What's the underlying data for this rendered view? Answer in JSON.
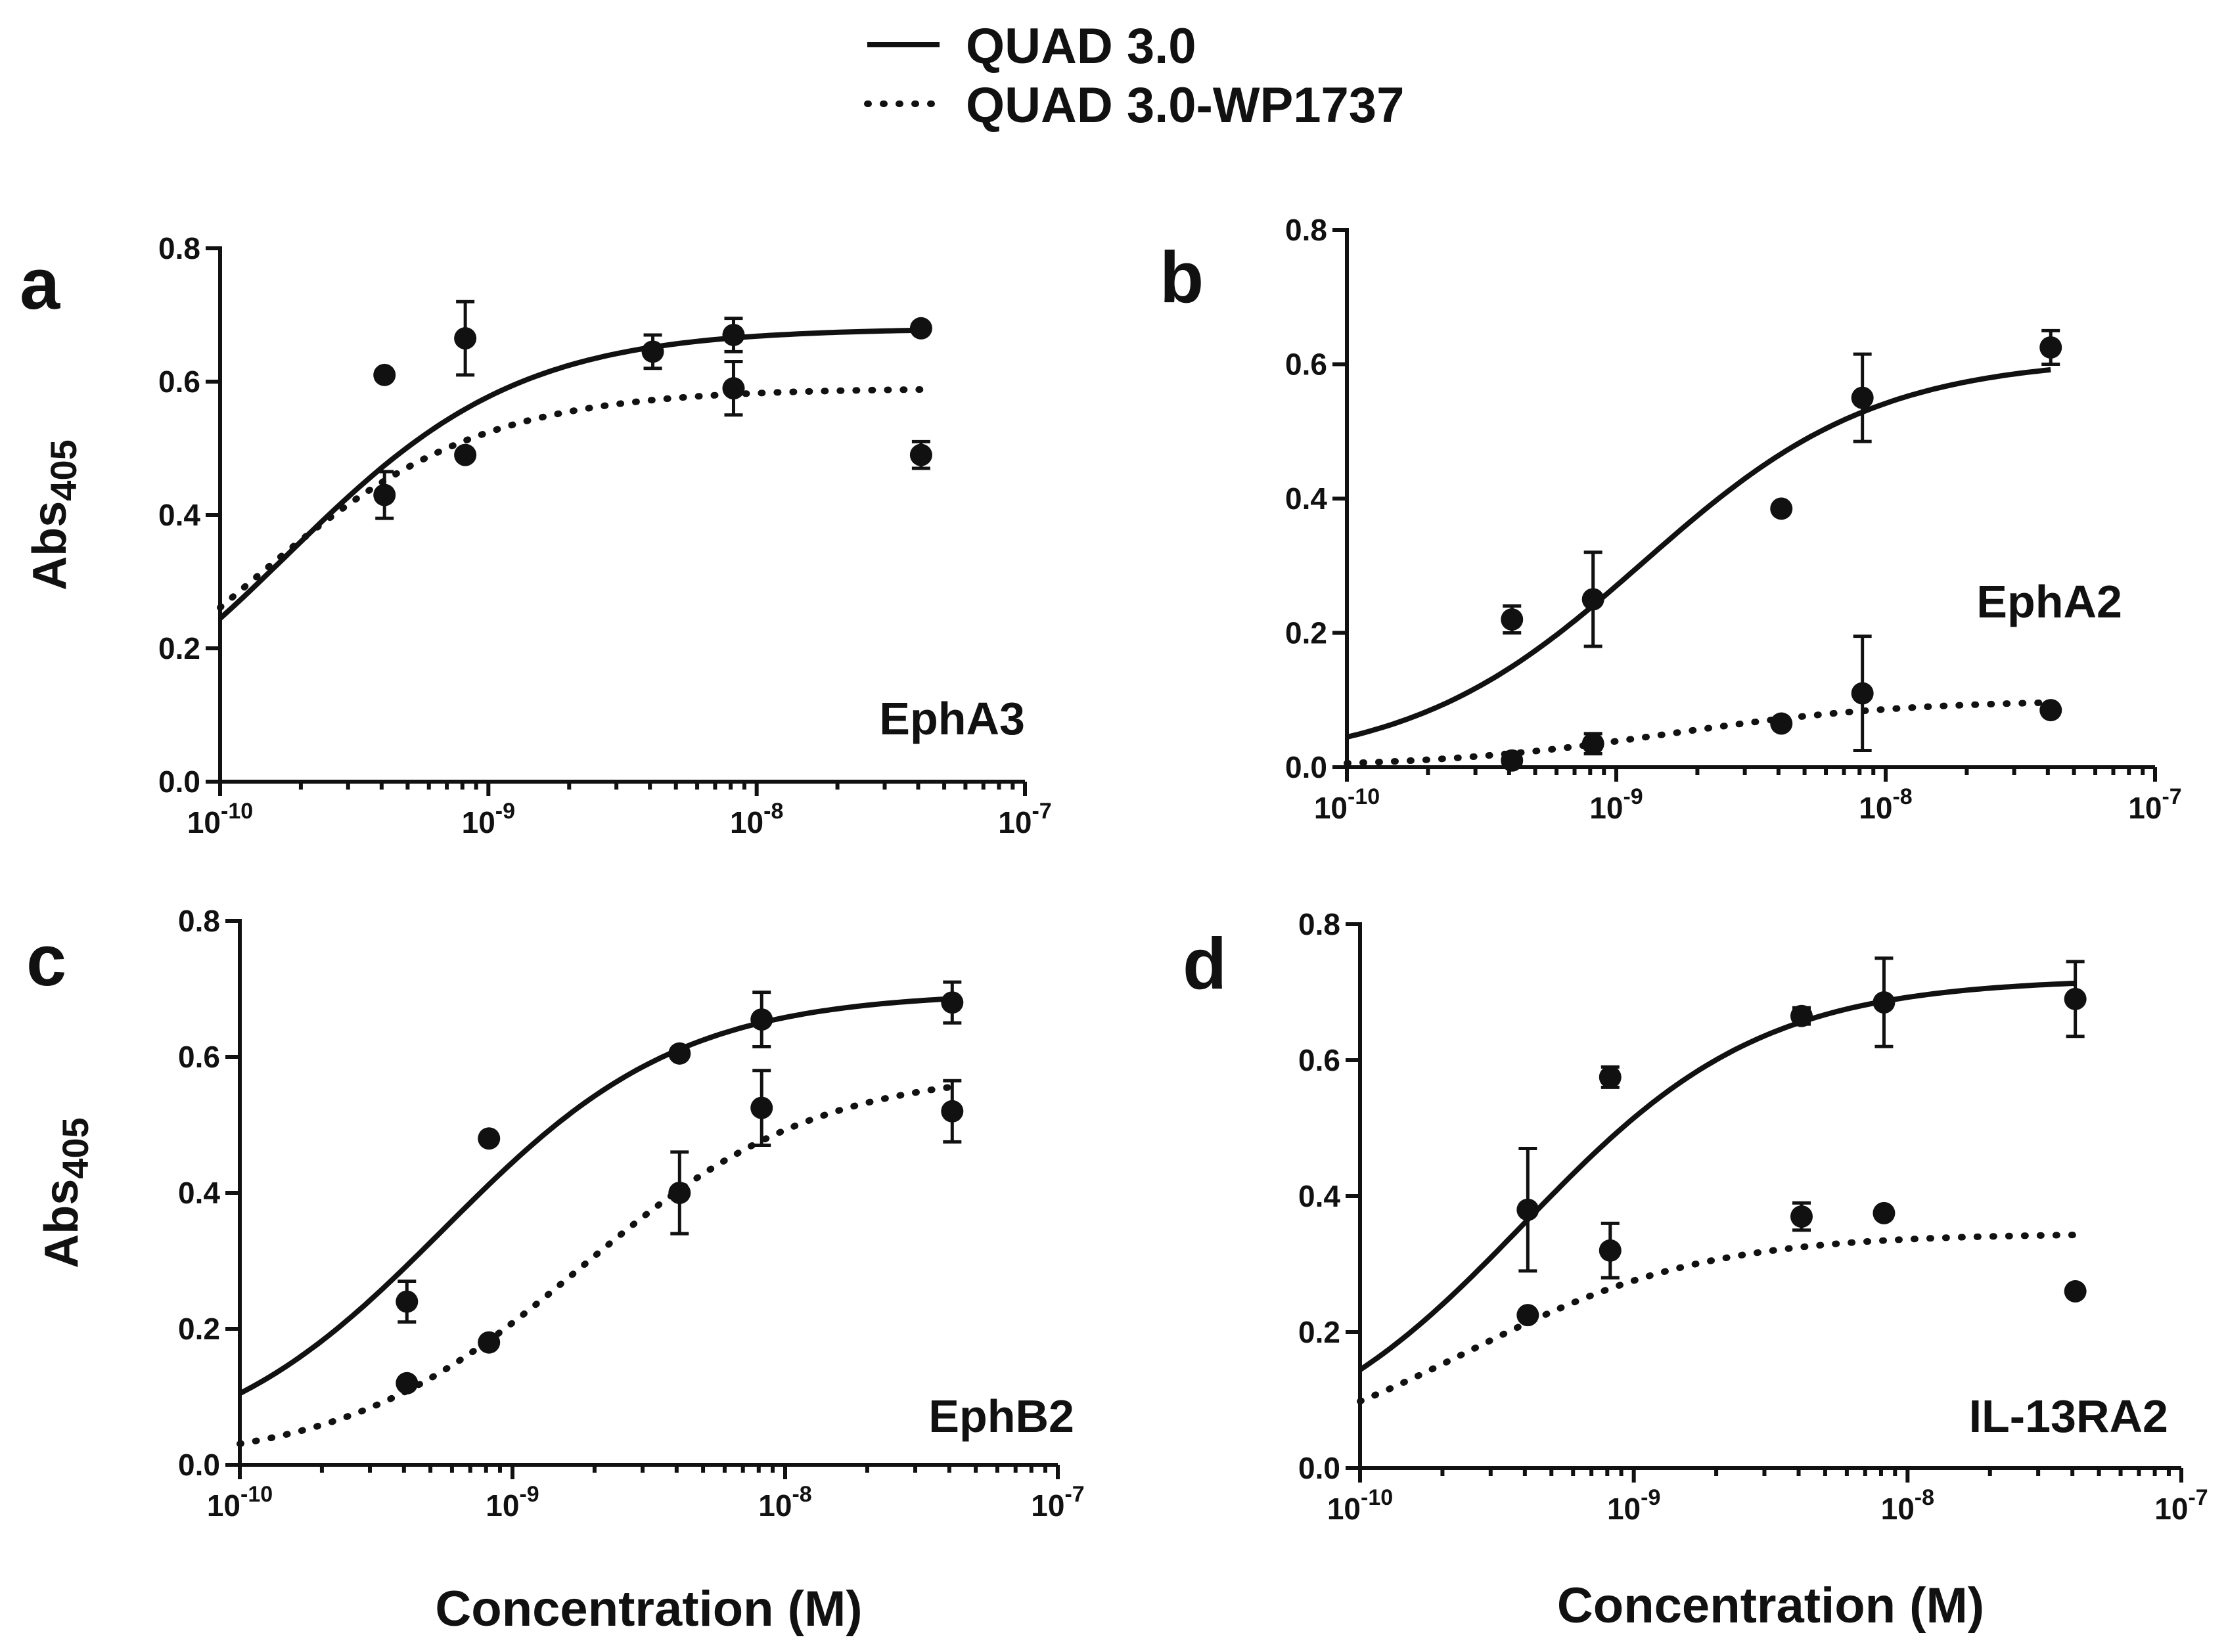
{
  "legend": {
    "entries": [
      {
        "name": "QUAD 3.0",
        "style": "solid"
      },
      {
        "name": "QUAD 3.0-WP1737",
        "style": "dotted"
      }
    ]
  },
  "colors": {
    "ink": "#111111",
    "background": "#ffffff"
  },
  "chart_data": [
    {
      "type": "scatter",
      "panel": "a",
      "label": "EphA3",
      "ylabel_main": "Abs",
      "ylabel_sub": "405",
      "xlabel": "",
      "xscale": "log",
      "xlim": [
        1e-10,
        1e-07
      ],
      "ylim": [
        0,
        0.8
      ],
      "yticks": [
        "0.0",
        "0.2",
        "0.4",
        "0.6",
        "0.8"
      ],
      "xticks": [
        {
          "base": "10",
          "exp": "-10",
          "value": 1e-10
        },
        {
          "base": "10",
          "exp": "-9",
          "value": 1e-09
        },
        {
          "base": "10",
          "exp": "-8",
          "value": 1e-08
        },
        {
          "base": "10",
          "exp": "-7",
          "value": 1e-07
        }
      ],
      "series": [
        {
          "name": "QUAD 3.0",
          "style": "solid",
          "points": [
            {
              "x": 4.1e-10,
              "y": 0.61,
              "err": 0
            },
            {
              "x": 8.2e-10,
              "y": 0.665,
              "err": 0.055
            },
            {
              "x": 4.1e-09,
              "y": 0.645,
              "err": 0.025
            },
            {
              "x": 8.2e-09,
              "y": 0.67,
              "err": 0.025
            },
            {
              "x": 4.1e-08,
              "y": 0.68,
              "err": 0
            }
          ],
          "fit": {
            "bottom": 0,
            "top": 0.68,
            "logEC50": -9.75,
            "hill": 1,
            "xmin": 1e-10,
            "xmax": 4.1e-08
          }
        },
        {
          "name": "QUAD 3.0-WP1737",
          "style": "dotted",
          "points": [
            {
              "x": 4.1e-10,
              "y": 0.43,
              "err": 0.035
            },
            {
              "x": 8.2e-10,
              "y": 0.49,
              "err": 0
            },
            {
              "x": 8.2e-09,
              "y": 0.59,
              "err": 0.04
            },
            {
              "x": 4.1e-08,
              "y": 0.49,
              "err": 0.02
            }
          ],
          "fit": {
            "bottom": 0,
            "top": 0.59,
            "logEC50": -9.9,
            "hill": 1,
            "xmin": 1e-10,
            "xmax": 4.1e-08
          }
        }
      ]
    },
    {
      "type": "scatter",
      "panel": "b",
      "label": "EphA2",
      "ylabel_main": "",
      "ylabel_sub": "",
      "xlabel": "",
      "xscale": "log",
      "xlim": [
        1e-10,
        1e-07
      ],
      "ylim": [
        0,
        0.8
      ],
      "yticks": [
        "0.0",
        "0.2",
        "0.4",
        "0.6",
        "0.8"
      ],
      "xticks": [
        {
          "base": "10",
          "exp": "-10",
          "value": 1e-10
        },
        {
          "base": "10",
          "exp": "-9",
          "value": 1e-09
        },
        {
          "base": "10",
          "exp": "-8",
          "value": 1e-08
        },
        {
          "base": "10",
          "exp": "-7",
          "value": 1e-07
        }
      ],
      "series": [
        {
          "name": "QUAD 3.0",
          "style": "solid",
          "points": [
            {
              "x": 4.1e-10,
              "y": 0.22,
              "err": 0.02
            },
            {
              "x": 8.2e-10,
              "y": 0.25,
              "err": 0.07
            },
            {
              "x": 4.1e-09,
              "y": 0.385,
              "err": 0
            },
            {
              "x": 8.2e-09,
              "y": 0.55,
              "err": 0.065
            },
            {
              "x": 4.1e-08,
              "y": 0.625,
              "err": 0.025
            }
          ],
          "fit": {
            "bottom": 0,
            "top": 0.61,
            "logEC50": -8.9,
            "hill": 1,
            "xmin": 1e-10,
            "xmax": 4.1e-08
          }
        },
        {
          "name": "QUAD 3.0-WP1737",
          "style": "dotted",
          "points": [
            {
              "x": 4.1e-10,
              "y": 0.01,
              "err": 0
            },
            {
              "x": 8.2e-10,
              "y": 0.035,
              "err": 0.015
            },
            {
              "x": 4.1e-09,
              "y": 0.065,
              "err": 0
            },
            {
              "x": 8.2e-09,
              "y": 0.11,
              "err": 0.085
            },
            {
              "x": 4.1e-08,
              "y": 0.085,
              "err": 0
            }
          ],
          "fit": {
            "bottom": 0,
            "top": 0.1,
            "logEC50": -8.8,
            "hill": 1,
            "xmin": 1e-10,
            "xmax": 4.1e-08
          }
        }
      ]
    },
    {
      "type": "scatter",
      "panel": "c",
      "label": "EphB2",
      "ylabel_main": "Abs",
      "ylabel_sub": "405",
      "xlabel": "Concentration (M)",
      "xscale": "log",
      "xlim": [
        1e-10,
        1e-07
      ],
      "ylim": [
        0,
        0.8
      ],
      "yticks": [
        "0.0",
        "0.2",
        "0.4",
        "0.6",
        "0.8"
      ],
      "xticks": [
        {
          "base": "10",
          "exp": "-10",
          "value": 1e-10
        },
        {
          "base": "10",
          "exp": "-9",
          "value": 1e-09
        },
        {
          "base": "10",
          "exp": "-8",
          "value": 1e-08
        },
        {
          "base": "10",
          "exp": "-7",
          "value": 1e-07
        }
      ],
      "series": [
        {
          "name": "QUAD 3.0",
          "style": "solid",
          "points": [
            {
              "x": 4.1e-10,
              "y": 0.24,
              "err": 0.03
            },
            {
              "x": 8.2e-10,
              "y": 0.48,
              "err": 0
            },
            {
              "x": 4.1e-09,
              "y": 0.605,
              "err": 0
            },
            {
              "x": 8.2e-09,
              "y": 0.655,
              "err": 0.04
            },
            {
              "x": 4.1e-08,
              "y": 0.68,
              "err": 0.03
            }
          ],
          "fit": {
            "bottom": 0,
            "top": 0.695,
            "logEC50": -9.25,
            "hill": 1,
            "xmin": 1e-10,
            "xmax": 4.1e-08
          }
        },
        {
          "name": "QUAD 3.0-WP1737",
          "style": "dotted",
          "points": [
            {
              "x": 4.1e-10,
              "y": 0.12,
              "err": 0
            },
            {
              "x": 8.2e-10,
              "y": 0.18,
              "err": 0
            },
            {
              "x": 4.1e-09,
              "y": 0.4,
              "err": 0.06
            },
            {
              "x": 8.2e-09,
              "y": 0.525,
              "err": 0.055
            },
            {
              "x": 4.1e-08,
              "y": 0.52,
              "err": 0.045
            }
          ],
          "fit": {
            "bottom": 0,
            "top": 0.58,
            "logEC50": -8.75,
            "hill": 1,
            "xmin": 1e-10,
            "xmax": 4.1e-08
          }
        }
      ]
    },
    {
      "type": "scatter",
      "panel": "d",
      "label": "IL-13RA2",
      "ylabel_main": "",
      "ylabel_sub": "",
      "xlabel": "Concentration (M)",
      "xscale": "log",
      "xlim": [
        1e-10,
        1e-07
      ],
      "ylim": [
        0,
        0.8
      ],
      "yticks": [
        "0.0",
        "0.2",
        "0.4",
        "0.6",
        "0.8"
      ],
      "xticks": [
        {
          "base": "10",
          "exp": "-10",
          "value": 1e-10
        },
        {
          "base": "10",
          "exp": "-9",
          "value": 1e-09
        },
        {
          "base": "10",
          "exp": "-8",
          "value": 1e-08
        },
        {
          "base": "10",
          "exp": "-7",
          "value": 1e-07
        }
      ],
      "series": [
        {
          "name": "QUAD 3.0",
          "style": "solid",
          "points": [
            {
              "x": 4.1e-10,
              "y": 0.38,
              "err": 0.09
            },
            {
              "x": 8.2e-10,
              "y": 0.575,
              "err": 0.015
            },
            {
              "x": 4.1e-09,
              "y": 0.665,
              "err": 0.012
            },
            {
              "x": 8.2e-09,
              "y": 0.685,
              "err": 0.065
            },
            {
              "x": 4.1e-08,
              "y": 0.69,
              "err": 0.055
            }
          ],
          "fit": {
            "bottom": 0,
            "top": 0.72,
            "logEC50": -9.4,
            "hill": 1,
            "xmin": 1e-10,
            "xmax": 4.1e-08
          }
        },
        {
          "name": "QUAD 3.0-WP1737",
          "style": "dotted",
          "points": [
            {
              "x": 4.1e-10,
              "y": 0.225,
              "err": 0
            },
            {
              "x": 8.2e-10,
              "y": 0.32,
              "err": 0.04
            },
            {
              "x": 4.1e-09,
              "y": 0.37,
              "err": 0.02
            },
            {
              "x": 8.2e-09,
              "y": 0.375,
              "err": 0
            },
            {
              "x": 4.1e-08,
              "y": 0.26,
              "err": 0
            }
          ],
          "fit": {
            "bottom": 0,
            "top": 0.345,
            "logEC50": -9.6,
            "hill": 1,
            "xmin": 1e-10,
            "xmax": 4.1e-08
          }
        }
      ]
    }
  ]
}
